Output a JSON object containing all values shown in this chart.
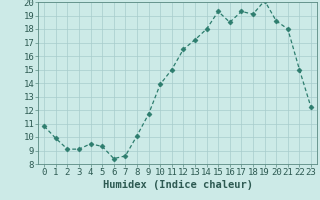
{
  "x": [
    0,
    1,
    2,
    3,
    4,
    5,
    6,
    7,
    8,
    9,
    10,
    11,
    12,
    13,
    14,
    15,
    16,
    17,
    18,
    19,
    20,
    21,
    22,
    23
  ],
  "y": [
    10.8,
    9.9,
    9.1,
    9.1,
    9.5,
    9.3,
    8.4,
    8.6,
    10.1,
    11.7,
    13.9,
    15.0,
    16.5,
    17.2,
    18.0,
    19.3,
    18.5,
    19.3,
    19.1,
    20.1,
    18.6,
    18.0,
    15.0,
    12.2
  ],
  "line_color": "#2d7d6e",
  "marker": "D",
  "marker_size": 2.5,
  "bg_color": "#cceae7",
  "grid_color": "#a8cccc",
  "xlabel": "Humidex (Indice chaleur)",
  "ylim": [
    8,
    20
  ],
  "xlim_min": -0.5,
  "xlim_max": 23.5,
  "yticks": [
    8,
    9,
    10,
    11,
    12,
    13,
    14,
    15,
    16,
    17,
    18,
    19,
    20
  ],
  "xticks": [
    0,
    1,
    2,
    3,
    4,
    5,
    6,
    7,
    8,
    9,
    10,
    11,
    12,
    13,
    14,
    15,
    16,
    17,
    18,
    19,
    20,
    21,
    22,
    23
  ],
  "text_color": "#2d5a52",
  "xlabel_fontsize": 7.5,
  "tick_fontsize": 6.5,
  "spine_color": "#5a8a82"
}
